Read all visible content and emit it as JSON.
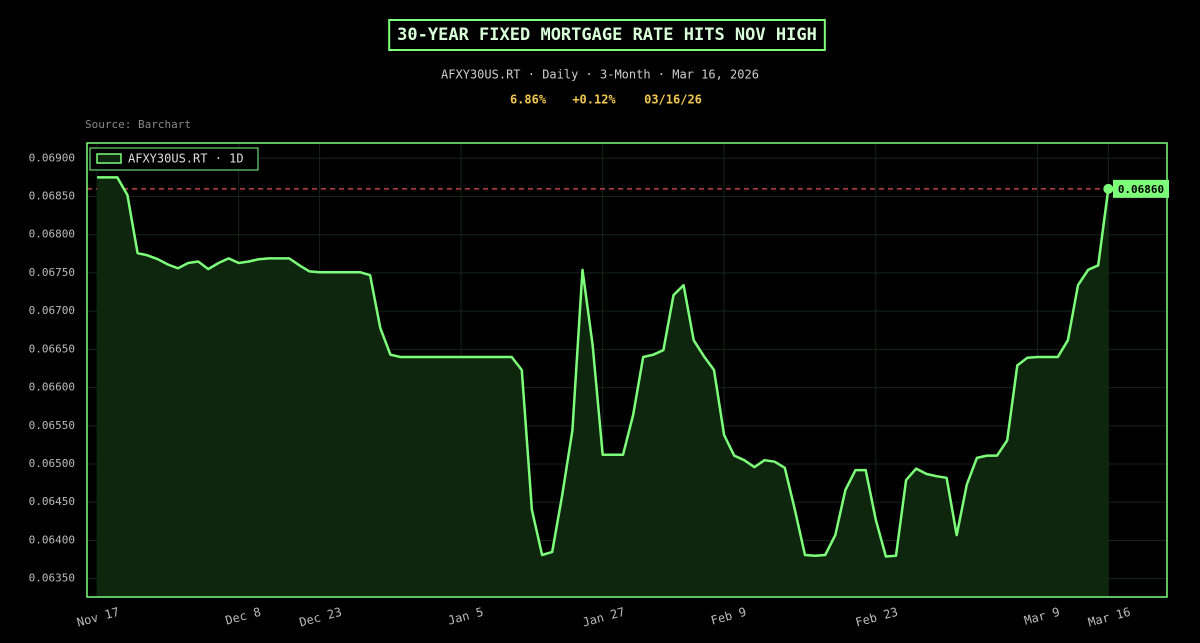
{
  "chart_data": {
    "type": "line",
    "title": "30-YEAR FIXED MORTGAGE RATE HITS NOV HIGH",
    "subtitle": "AFXY30US.RT · Daily · 3-Month · Mar 16, 2026",
    "stats": [
      "6.86%",
      "+0.12%",
      "03/16/26"
    ],
    "source": "Source: Barchart",
    "x": [
      0,
      1,
      2,
      3,
      4,
      5,
      6,
      7,
      8,
      9,
      10,
      11,
      12,
      13,
      14,
      15,
      16,
      17,
      18,
      19,
      20,
      21,
      22,
      23,
      24,
      25,
      26,
      27,
      28,
      29,
      30,
      31,
      32,
      33,
      34,
      35,
      36,
      37,
      38,
      39,
      40,
      41,
      42,
      43,
      44,
      45,
      46,
      47,
      48,
      49,
      50,
      51,
      52,
      53,
      54,
      55,
      56,
      57,
      58,
      59,
      60,
      61,
      62,
      63,
      64,
      65,
      66,
      67,
      68,
      69,
      70,
      71,
      72,
      73,
      74,
      75,
      76,
      77,
      78,
      79,
      80,
      81,
      82,
      83,
      84,
      85,
      86,
      87,
      88,
      89,
      90,
      91,
      92,
      93,
      94,
      95,
      96,
      97,
      98,
      99,
      100
    ],
    "series": [
      {
        "name": "AFXY30US.RT · 1D",
        "color": "#7dff7a",
        "fill": "#0d260d",
        "values": [
          0.06875,
          0.06875,
          0.06875,
          0.06852,
          0.06776,
          0.06773,
          0.06768,
          0.06761,
          0.06756,
          0.06763,
          0.06765,
          0.06755,
          0.06763,
          0.06769,
          0.06763,
          0.06765,
          0.06768,
          0.06769,
          0.06769,
          0.06769,
          0.0676,
          0.06752,
          0.06751,
          0.06751,
          0.06751,
          0.06751,
          0.06751,
          0.06747,
          0.06678,
          0.06643,
          0.0664,
          0.0664,
          0.0664,
          0.0664,
          0.0664,
          0.0664,
          0.0664,
          0.0664,
          0.0664,
          0.0664,
          0.0664,
          0.0664,
          0.06623,
          0.0644,
          0.06381,
          0.06385,
          0.0646,
          0.06544,
          0.06754,
          0.06656,
          0.06512,
          0.06512,
          0.06512,
          0.06564,
          0.0664,
          0.06643,
          0.06649,
          0.06721,
          0.06734,
          0.06662,
          0.06641,
          0.06623,
          0.06538,
          0.06511,
          0.06505,
          0.06496,
          0.06505,
          0.06503,
          0.06495,
          0.0644,
          0.06381,
          0.0638,
          0.06381,
          0.06407,
          0.06466,
          0.06492,
          0.06492,
          0.06427,
          0.06379,
          0.0638,
          0.06479,
          0.06494,
          0.06487,
          0.06484,
          0.06482,
          0.06407,
          0.06473,
          0.06508,
          0.06511,
          0.06511,
          0.06531,
          0.06629,
          0.06639,
          0.0664,
          0.0664,
          0.0664,
          0.06662,
          0.06734,
          0.06754,
          0.0676,
          0.0686
        ]
      }
    ],
    "reference_line": {
      "value": 0.0686,
      "label": "0.06860",
      "color": "#e05050"
    },
    "xlim": [
      -1,
      105.8
    ],
    "xticks": [
      {
        "value": 0,
        "label": "Nov 17"
      },
      {
        "value": 14,
        "label": "Dec 8"
      },
      {
        "value": 22,
        "label": "Dec 23"
      },
      {
        "value": 36,
        "label": "Jan 5"
      },
      {
        "value": 50,
        "label": "Jan 27"
      },
      {
        "value": 62,
        "label": "Feb 9"
      },
      {
        "value": 77,
        "label": "Feb 23"
      },
      {
        "value": 93,
        "label": "Mar 9"
      },
      {
        "value": 100,
        "label": "Mar 16"
      }
    ],
    "ylim": [
      0.06326,
      0.0692
    ],
    "yticks": [
      {
        "value": 0.0635,
        "label": "0.06350"
      },
      {
        "value": 0.064,
        "label": "0.06400"
      },
      {
        "value": 0.0645,
        "label": "0.06450"
      },
      {
        "value": 0.065,
        "label": "0.06500"
      },
      {
        "value": 0.0655,
        "label": "0.06550"
      },
      {
        "value": 0.066,
        "label": "0.06600"
      },
      {
        "value": 0.0665,
        "label": "0.06650"
      },
      {
        "value": 0.067,
        "label": "0.06700"
      },
      {
        "value": 0.0675,
        "label": "0.06750"
      },
      {
        "value": 0.068,
        "label": "0.06800"
      },
      {
        "value": 0.0685,
        "label": "0.06850"
      },
      {
        "value": 0.069,
        "label": "0.06900"
      }
    ],
    "grid": true,
    "legend": "top-left"
  }
}
